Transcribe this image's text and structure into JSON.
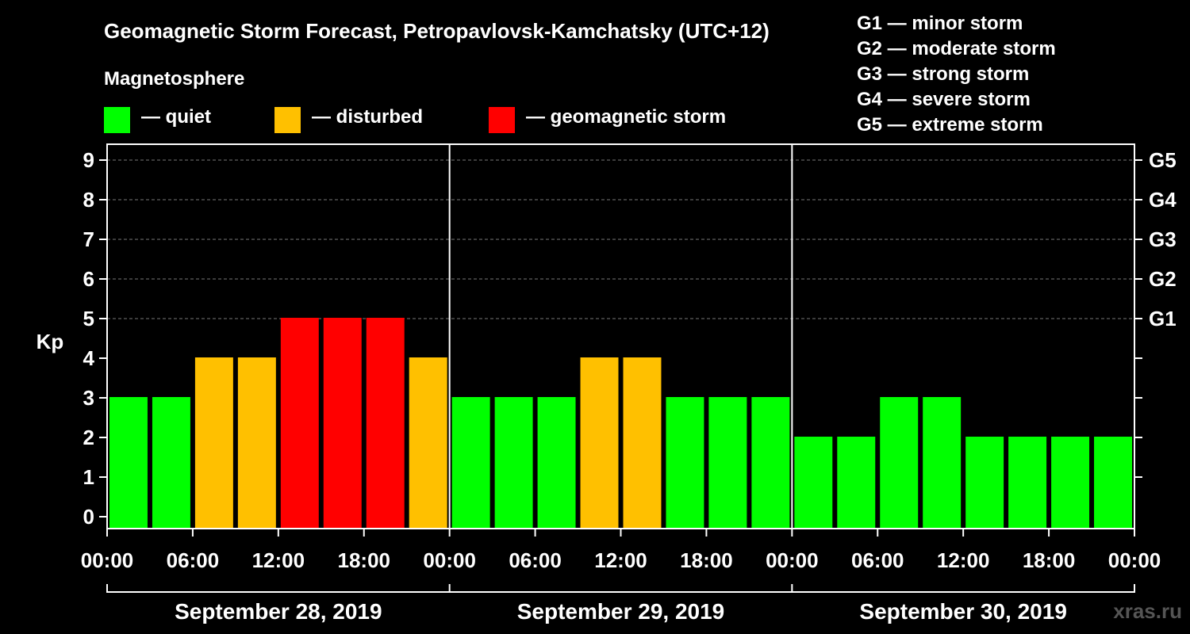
{
  "title": "Geomagnetic Storm Forecast, Petropavlovsk-Kamchatsky (UTC+12)",
  "legend": {
    "heading": "Magnetosphere",
    "items": [
      {
        "label": "— quiet",
        "color": "#00ff00"
      },
      {
        "label": "— disturbed",
        "color": "#ffc000"
      },
      {
        "label": "— geomagnetic storm",
        "color": "#ff0000"
      }
    ]
  },
  "g_scale": [
    "G1 — minor storm",
    "G2 — moderate storm",
    "G3 — strong storm",
    "G4 — severe storm",
    "G5 — extreme storm"
  ],
  "watermark": "xras.ru",
  "chart_data": {
    "type": "bar",
    "title": "Geomagnetic Storm Forecast, Petropavlovsk-Kamchatsky (UTC+12)",
    "ylabel": "Kp",
    "xlabel": "",
    "ylim": [
      0,
      9
    ],
    "yticks": [
      "0",
      "1",
      "2",
      "3",
      "4",
      "5",
      "6",
      "7",
      "8",
      "9"
    ],
    "right_ticks": [
      {
        "label": "G1",
        "value": 5
      },
      {
        "label": "G2",
        "value": 6
      },
      {
        "label": "G3",
        "value": 7
      },
      {
        "label": "G4",
        "value": 8
      },
      {
        "label": "G5",
        "value": 9
      }
    ],
    "xtick_labels": [
      "00:00",
      "06:00",
      "12:00",
      "18:00",
      "00:00",
      "06:00",
      "12:00",
      "18:00",
      "00:00",
      "06:00",
      "12:00",
      "18:00",
      "00:00"
    ],
    "days": [
      "September 28, 2019",
      "September 29, 2019",
      "September 30, 2019"
    ],
    "values": [
      3,
      3,
      4,
      4,
      5,
      5,
      5,
      4,
      3,
      3,
      3,
      4,
      4,
      3,
      3,
      3,
      2,
      2,
      3,
      3,
      2,
      2,
      2,
      2
    ],
    "colors": {
      "quiet": "#00ff00",
      "disturbed": "#ffc000",
      "storm": "#ff0000"
    },
    "grid": true
  }
}
